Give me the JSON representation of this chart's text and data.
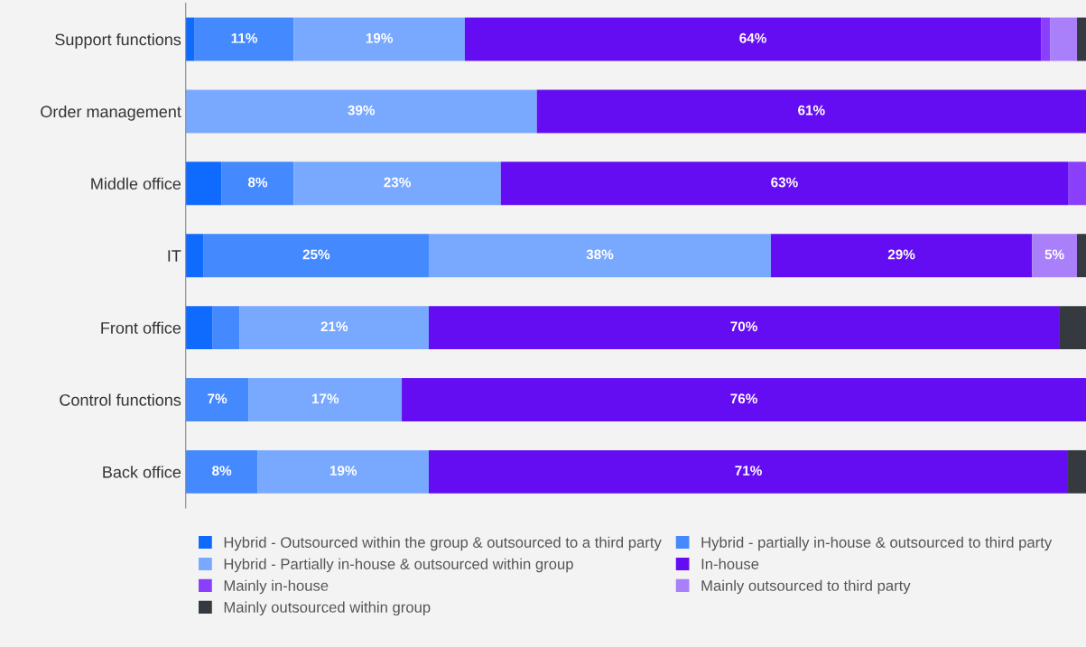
{
  "chart_data": {
    "type": "bar",
    "orientation": "horizontal",
    "stacked": true,
    "categories": [
      "Support functions",
      "Order management",
      "Middle office",
      "IT",
      "Front office",
      "Control functions",
      "Back office"
    ],
    "series": [
      {
        "name": "Hybrid - Outsourced within the group & outsourced to a third party",
        "color": "#0f6afe",
        "values": [
          1,
          0,
          4,
          2,
          3,
          0,
          0
        ],
        "value_labels": [
          null,
          null,
          null,
          null,
          null,
          null,
          null
        ]
      },
      {
        "name": "Hybrid - partially in-house & outsourced to third party",
        "color": "#4589ff",
        "values": [
          11,
          0,
          8,
          25,
          3,
          7,
          8
        ],
        "value_labels": [
          "11%",
          null,
          "8%",
          "25%",
          null,
          "7%",
          "8%"
        ]
      },
      {
        "name": "Hybrid - Partially in-house & outsourced within group",
        "color": "#78a9ff",
        "values": [
          19,
          39,
          23,
          38,
          21,
          17,
          19
        ],
        "value_labels": [
          "19%",
          "39%",
          "23%",
          "38%",
          "21%",
          "17%",
          "19%"
        ]
      },
      {
        "name": "In-house",
        "color": "#650df2",
        "values": [
          64,
          61,
          63,
          29,
          70,
          76,
          71
        ],
        "value_labels": [
          "64%",
          "61%",
          "63%",
          "29%",
          "70%",
          "76%",
          "71%"
        ]
      },
      {
        "name": "Mainly in-house",
        "color": "#8a3ffc",
        "values": [
          1,
          0,
          2,
          0,
          0,
          0,
          0
        ],
        "value_labels": [
          null,
          null,
          null,
          null,
          null,
          null,
          null
        ]
      },
      {
        "name": "Mainly outsourced to third party",
        "color": "#a97ffa",
        "values": [
          3,
          0,
          0,
          5,
          0,
          0,
          0
        ],
        "value_labels": [
          null,
          null,
          null,
          "5%",
          null,
          null,
          null
        ]
      },
      {
        "name": "Mainly outsourced within group",
        "color": "#343a40",
        "values": [
          1,
          0,
          0,
          1,
          3,
          0,
          2
        ],
        "value_labels": [
          null,
          null,
          null,
          null,
          null,
          null,
          null
        ]
      }
    ],
    "xlim": [
      0,
      100
    ],
    "tick_labels": "y",
    "grid": false,
    "legend": "bottom"
  }
}
